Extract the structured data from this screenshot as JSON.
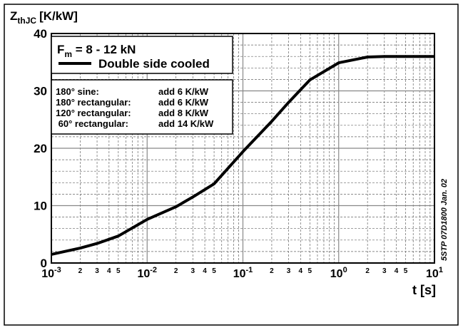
{
  "chart_data": {
    "type": "line",
    "ylabel": {
      "symbol": "Z",
      "subscript": "thJC",
      "unit": "[K/kW]"
    },
    "xlabel": "t [s]",
    "xscale": "log",
    "xlim": [
      0.001,
      10
    ],
    "ylim": [
      0,
      40
    ],
    "xticks": [
      {
        "value": 0.001,
        "label": "10",
        "exponent": "-3"
      },
      {
        "value": 0.01,
        "label": "10",
        "exponent": "-2"
      },
      {
        "value": 0.1,
        "label": "10",
        "exponent": "-1"
      },
      {
        "value": 1,
        "label": "10",
        "exponent": "0"
      },
      {
        "value": 10,
        "label": "10",
        "exponent": "1"
      }
    ],
    "xminorticks": [
      {
        "value": 0.002,
        "label": "2"
      },
      {
        "value": 0.003,
        "label": "3"
      },
      {
        "value": 0.004,
        "label": "4"
      },
      {
        "value": 0.005,
        "label": "5"
      },
      {
        "value": 0.02,
        "label": "2"
      },
      {
        "value": 0.03,
        "label": "3"
      },
      {
        "value": 0.04,
        "label": "4"
      },
      {
        "value": 0.05,
        "label": "5"
      },
      {
        "value": 0.2,
        "label": "2"
      },
      {
        "value": 0.3,
        "label": "3"
      },
      {
        "value": 0.4,
        "label": "4"
      },
      {
        "value": 0.5,
        "label": "5"
      },
      {
        "value": 2,
        "label": "2"
      },
      {
        "value": 3,
        "label": "3"
      },
      {
        "value": 4,
        "label": "4"
      },
      {
        "value": 5,
        "label": "5"
      }
    ],
    "xminorgrid": [
      0.006,
      0.007,
      0.008,
      0.009,
      0.06,
      0.07,
      0.08,
      0.09,
      0.6,
      0.7,
      0.8,
      0.9,
      6,
      7,
      8,
      9
    ],
    "yticks": [
      0,
      10,
      20,
      30,
      40
    ],
    "yminorgrid": [
      2,
      4,
      6,
      8,
      12,
      14,
      16,
      18,
      22,
      24,
      26,
      28,
      32,
      34,
      36,
      38
    ],
    "grid": true,
    "condition": {
      "symbol": "F",
      "subscript": "m",
      "text": " = 8 - 12 kN"
    },
    "series": [
      {
        "name": "Double side cooled",
        "color": "#000000",
        "x": [
          0.001,
          0.002,
          0.003,
          0.005,
          0.01,
          0.02,
          0.03,
          0.05,
          0.1,
          0.2,
          0.3,
          0.5,
          1,
          2,
          3,
          5,
          10
        ],
        "values": [
          1.5,
          2.6,
          3.4,
          4.7,
          7.6,
          9.8,
          11.5,
          13.8,
          19.4,
          24.7,
          28,
          31.9,
          34.9,
          35.9,
          36,
          36,
          36
        ]
      }
    ],
    "notes": [
      [
        "180° sine:",
        "add 6 K/kW"
      ],
      [
        "180° rectangular:",
        "add 6 K/kW"
      ],
      [
        "120° rectangular:",
        "add 8 K/kW"
      ],
      [
        " 60° rectangular:",
        "add 14 K/kW"
      ]
    ],
    "side_note": "5STP 07D1800 Jan. 02"
  }
}
